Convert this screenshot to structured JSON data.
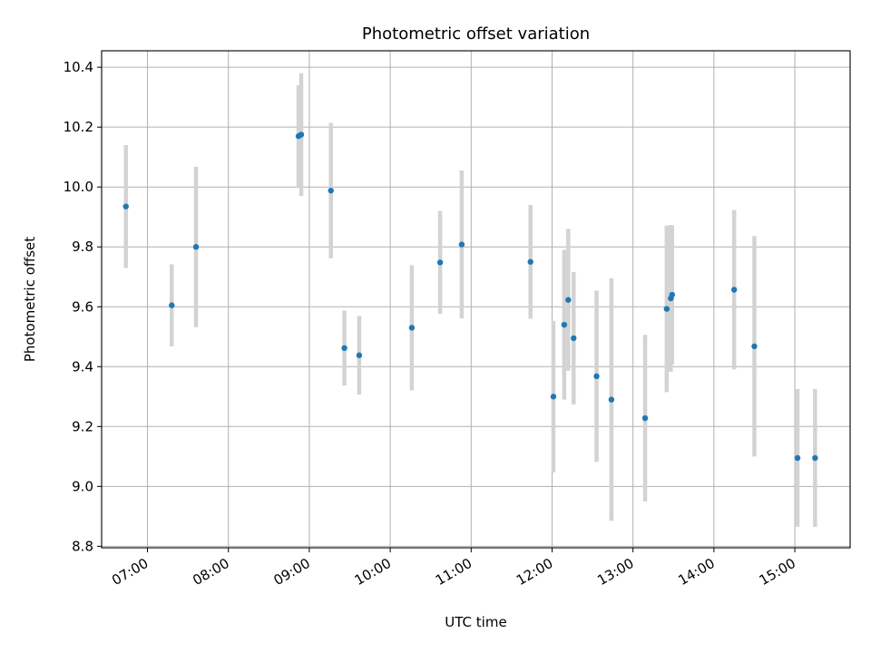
{
  "chart_data": {
    "type": "scatter",
    "title": "Photometric offset variation",
    "xlabel": "UTC time",
    "ylabel": "Photometric offset",
    "x_unit": "UTC time (HH:MM)",
    "xlim": [
      "06:26",
      "15:41"
    ],
    "ylim": [
      8.795,
      10.455
    ],
    "x_ticks": [
      "07:00",
      "08:00",
      "09:00",
      "10:00",
      "11:00",
      "12:00",
      "13:00",
      "14:00",
      "15:00"
    ],
    "y_ticks": [
      8.8,
      9.0,
      9.2,
      9.4,
      9.6,
      9.8,
      10.0,
      10.2,
      10.4
    ],
    "grid": true,
    "point_color": "#1f77b4",
    "errorbar_color": "#d3d3d3",
    "points": [
      {
        "time": "06:44",
        "y": 9.935,
        "err": 0.205
      },
      {
        "time": "07:18",
        "y": 9.605,
        "err": 0.137
      },
      {
        "time": "07:36",
        "y": 9.8,
        "err": 0.268
      },
      {
        "time": "08:52",
        "y": 10.17,
        "err": 0.17
      },
      {
        "time": "08:54",
        "y": 10.175,
        "err": 0.205
      },
      {
        "time": "09:16",
        "y": 9.988,
        "err": 0.226
      },
      {
        "time": "09:26",
        "y": 9.462,
        "err": 0.125
      },
      {
        "time": "09:37",
        "y": 9.438,
        "err": 0.131
      },
      {
        "time": "10:16",
        "y": 9.53,
        "err": 0.209
      },
      {
        "time": "10:37",
        "y": 9.748,
        "err": 0.172
      },
      {
        "time": "10:53",
        "y": 9.808,
        "err": 0.247
      },
      {
        "time": "11:44",
        "y": 9.75,
        "err": 0.19
      },
      {
        "time": "12:01",
        "y": 9.3,
        "err": 0.253
      },
      {
        "time": "12:09",
        "y": 9.54,
        "err": 0.25
      },
      {
        "time": "12:12",
        "y": 9.623,
        "err": 0.237
      },
      {
        "time": "12:16",
        "y": 9.495,
        "err": 0.221
      },
      {
        "time": "12:33",
        "y": 9.368,
        "err": 0.286
      },
      {
        "time": "12:44",
        "y": 9.29,
        "err": 0.405
      },
      {
        "time": "13:09",
        "y": 9.228,
        "err": 0.278
      },
      {
        "time": "13:25",
        "y": 9.593,
        "err": 0.278
      },
      {
        "time": "13:28",
        "y": 9.628,
        "err": 0.245
      },
      {
        "time": "13:29",
        "y": 9.64,
        "err": 0.232
      },
      {
        "time": "14:15",
        "y": 9.657,
        "err": 0.266
      },
      {
        "time": "14:30",
        "y": 9.468,
        "err": 0.368
      },
      {
        "time": "15:02",
        "y": 9.095,
        "err": 0.23
      },
      {
        "time": "15:15",
        "y": 9.095,
        "err": 0.23
      }
    ]
  }
}
